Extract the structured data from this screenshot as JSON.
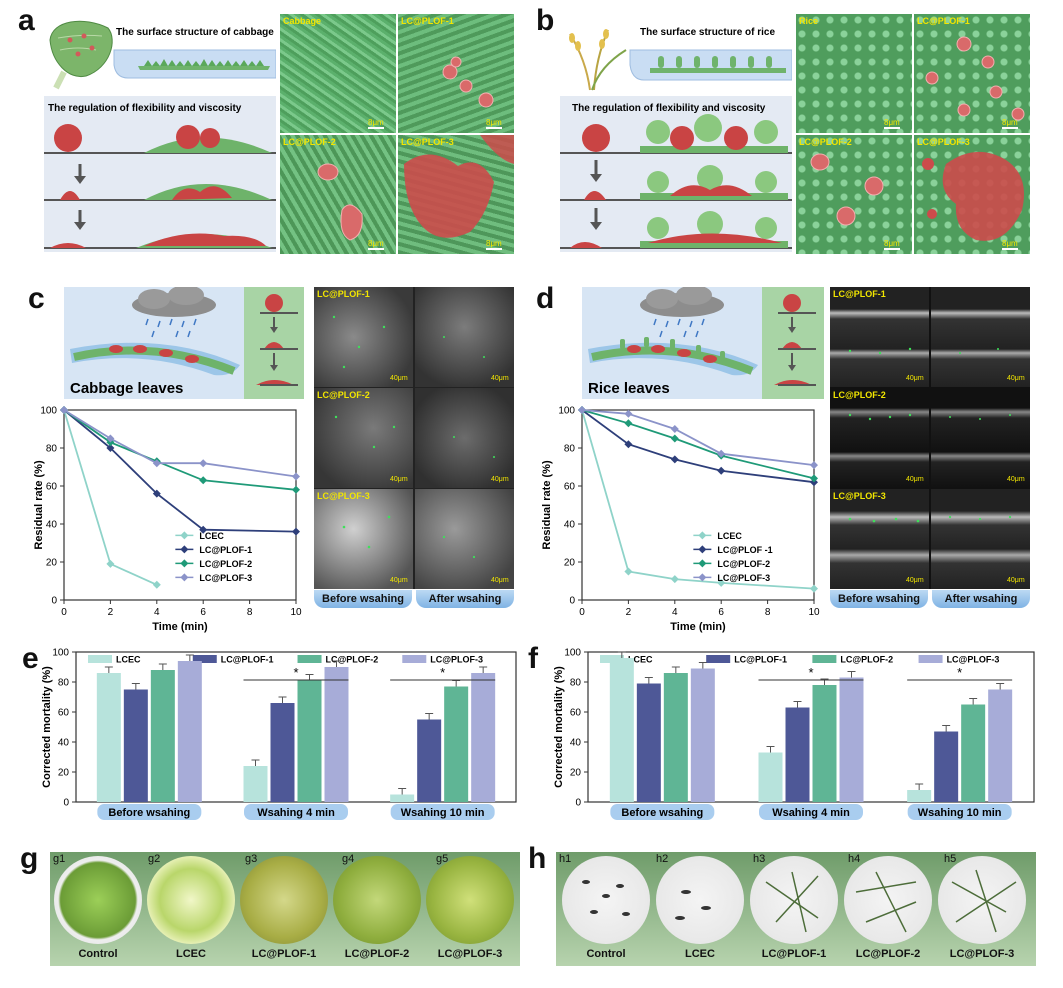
{
  "panel_letters": [
    "a",
    "b",
    "c",
    "d",
    "e",
    "f",
    "g",
    "h"
  ],
  "panel_a": {
    "surface_title": "The surface structure of cabbage",
    "regulation_title": "The regulation of flexibility and viscosity",
    "micrographs": [
      {
        "label": "Cabbage",
        "scale": "8μm"
      },
      {
        "label": "LC@PLOF-1",
        "scale": "8μm"
      },
      {
        "label": "LC@PLOF-2",
        "scale": "8μm"
      },
      {
        "label": "LC@PLOF-3",
        "scale": "8μm"
      }
    ]
  },
  "panel_b": {
    "surface_title": "The surface structure of rice",
    "regulation_title": "The regulation of flexibility and viscosity",
    "micrographs": [
      {
        "label": "Rice",
        "scale": "8μm"
      },
      {
        "label": "LC@PLOF-1",
        "scale": "8μm"
      },
      {
        "label": "LC@PLOF-2",
        "scale": "8μm"
      },
      {
        "label": "LC@PLOF-3",
        "scale": "8μm"
      }
    ]
  },
  "panel_c": {
    "leaf_label": "Cabbage leaves",
    "fluor_labels": [
      "LC@PLOF-1",
      "LC@PLOF-2",
      "LC@PLOF-3"
    ],
    "fluor_scale": "40μm",
    "before_label": "Before wsahing",
    "after_label": "After wsahing"
  },
  "panel_d": {
    "leaf_label": "Rice leaves",
    "fluor_labels": [
      "LC@PLOF-1",
      "LC@PLOF-2",
      "LC@PLOF-3"
    ],
    "fluor_scale": "40μm",
    "before_label": "Before wsahing",
    "after_label": "After wsahing"
  },
  "panel_g": {
    "subs": [
      "g1",
      "g2",
      "g3",
      "g4",
      "g5"
    ],
    "labels": [
      "Control",
      "LCEC",
      "LC@PLOF-1",
      "LC@PLOF-2",
      "LC@PLOF-3"
    ]
  },
  "panel_h": {
    "subs": [
      "h1",
      "h2",
      "h3",
      "h4",
      "h5"
    ],
    "labels": [
      "Control",
      "LCEC",
      "LC@PLOF-1",
      "LC@PLOF-2",
      "LC@PLOF-3"
    ]
  },
  "colors": {
    "LCEC": "#8fd3c9",
    "LC@PLOF-1": "#2e3f7a",
    "LC@PLOF-2": "#1f9a78",
    "LC@PLOF-3": "#8b93c9",
    "bar_LCEC": "#b7e3dc",
    "bar_LC@PLOF-1": "#4e5897",
    "bar_LC@PLOF-2": "#5fb595",
    "bar_LC@PLOF-3": "#a7acd8"
  },
  "chart_data": [
    {
      "id": "c",
      "type": "line",
      "xlabel": "Time (min)",
      "ylabel": "Residual rate (%)",
      "xlim": [
        0,
        10
      ],
      "ylim": [
        0,
        100
      ],
      "xticks": [
        0,
        2,
        4,
        6,
        8,
        10
      ],
      "yticks": [
        0,
        20,
        40,
        60,
        80,
        100
      ],
      "series": [
        {
          "name": "LCEC",
          "x": [
            0,
            2,
            4
          ],
          "y": [
            100,
            19,
            8
          ]
        },
        {
          "name": "LC@PLOF-1",
          "x": [
            0,
            2,
            4,
            6,
            10
          ],
          "y": [
            100,
            80,
            56,
            37,
            36
          ]
        },
        {
          "name": "LC@PLOF-2",
          "x": [
            0,
            2,
            4,
            6,
            10
          ],
          "y": [
            100,
            83,
            73,
            63,
            58
          ]
        },
        {
          "name": "LC@PLOF-3",
          "x": [
            0,
            2,
            4,
            6,
            10
          ],
          "y": [
            100,
            85,
            72,
            72,
            65
          ]
        }
      ]
    },
    {
      "id": "d",
      "type": "line",
      "xlabel": "Time (min)",
      "ylabel": "Residual rate (%)",
      "xlim": [
        0,
        10
      ],
      "ylim": [
        0,
        100
      ],
      "xticks": [
        0,
        2,
        4,
        6,
        8,
        10
      ],
      "yticks": [
        0,
        20,
        40,
        60,
        80,
        100
      ],
      "series": [
        {
          "name": "LCEC",
          "x": [
            0,
            2,
            4,
            6,
            10
          ],
          "y": [
            100,
            15,
            11,
            9,
            6
          ]
        },
        {
          "name": "LC@PLOF -1",
          "x": [
            0,
            2,
            4,
            6,
            10
          ],
          "y": [
            100,
            82,
            74,
            68,
            62
          ]
        },
        {
          "name": "LC@PLOF-2",
          "x": [
            0,
            2,
            4,
            6,
            10
          ],
          "y": [
            100,
            93,
            85,
            76,
            64
          ]
        },
        {
          "name": "LC@PLOF-3",
          "x": [
            0,
            2,
            4,
            6,
            10
          ],
          "y": [
            100,
            98,
            90,
            77,
            71
          ]
        }
      ]
    },
    {
      "id": "e",
      "type": "bar",
      "ylabel": "Corrected mortality (%)",
      "ylim": [
        0,
        100
      ],
      "yticks": [
        0,
        20,
        40,
        60,
        80,
        100
      ],
      "categories": [
        "Before wsahing",
        "Wsahing 4 min",
        "Wsahing 10 min"
      ],
      "significance": [
        "",
        "*",
        "*"
      ],
      "series": [
        {
          "name": "LCEC",
          "values": [
            86,
            24,
            5
          ]
        },
        {
          "name": "LC@PLOF-1",
          "values": [
            75,
            66,
            55
          ]
        },
        {
          "name": "LC@PLOF-2",
          "values": [
            88,
            81,
            77
          ]
        },
        {
          "name": "LC@PLOF-3",
          "values": [
            94,
            90,
            86
          ]
        }
      ]
    },
    {
      "id": "f",
      "type": "bar",
      "ylabel": "Corrected mortality (%)",
      "ylim": [
        0,
        100
      ],
      "yticks": [
        0,
        20,
        40,
        60,
        80,
        100
      ],
      "categories": [
        "Before wsahing",
        "Wsahing 4 min",
        "Wsahing 10 min"
      ],
      "significance": [
        "",
        "*",
        "*"
      ],
      "series": [
        {
          "name": "LCEC",
          "values": [
            96,
            33,
            8
          ]
        },
        {
          "name": "LC@PLOF-1",
          "values": [
            79,
            63,
            47
          ]
        },
        {
          "name": "LC@PLOF-2",
          "values": [
            86,
            78,
            65
          ]
        },
        {
          "name": "LC@PLOF-3",
          "values": [
            89,
            83,
            75
          ]
        }
      ]
    }
  ]
}
